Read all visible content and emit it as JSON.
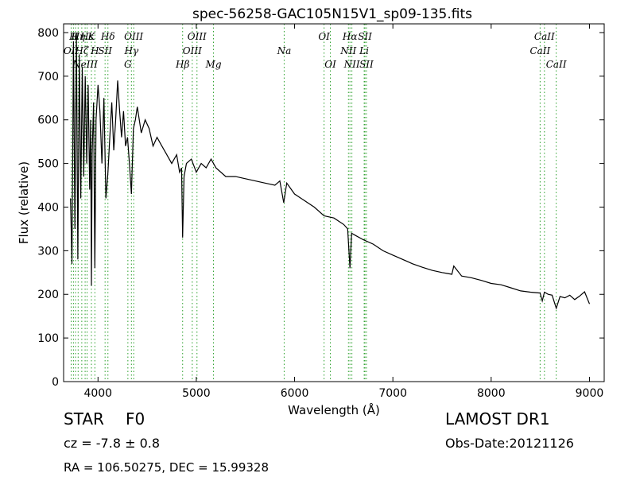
{
  "chart_data": {
    "type": "line",
    "title": "spec-56258-GAC105N15V1_sp09-135.fits",
    "xlabel": "Wavelength (Å)",
    "ylabel": "Flux (relative)",
    "xlim": [
      3650,
      9150
    ],
    "ylim": [
      0,
      820
    ],
    "xticks": [
      4000,
      5000,
      6000,
      7000,
      8000,
      9000
    ],
    "yticks": [
      0,
      100,
      200,
      300,
      400,
      500,
      600,
      700,
      800
    ],
    "grid": false,
    "line_color": "#000000",
    "marker_color": "#2ca02c",
    "series": [
      {
        "x": [
          3720,
          3735,
          3750,
          3765,
          3780,
          3795,
          3810,
          3825,
          3840,
          3855,
          3870,
          3885,
          3900,
          3915,
          3925,
          3933,
          3940,
          3955,
          3968,
          3980,
          4000,
          4020,
          4040,
          4060,
          4080,
          4101,
          4120,
          4140,
          4160,
          4180,
          4200,
          4220,
          4240,
          4260,
          4280,
          4300,
          4320,
          4340,
          4360,
          4380,
          4400,
          4440,
          4480,
          4520,
          4560,
          4600,
          4650,
          4700,
          4750,
          4800,
          4830,
          4850,
          4861,
          4875,
          4900,
          4950,
          5000,
          5050,
          5100,
          5150,
          5200,
          5300,
          5400,
          5500,
          5600,
          5700,
          5800,
          5850,
          5890,
          5920,
          6000,
          6100,
          6200,
          6300,
          6400,
          6500,
          6540,
          6563,
          6580,
          6620,
          6700,
          6800,
          6900,
          7000,
          7100,
          7200,
          7300,
          7400,
          7500,
          7550,
          7600,
          7620,
          7700,
          7800,
          7900,
          8000,
          8100,
          8200,
          8300,
          8400,
          8498,
          8520,
          8542,
          8580,
          8620,
          8662,
          8700,
          8750,
          8800,
          8850,
          8900,
          8950,
          9000
        ],
        "y": [
          420,
          270,
          780,
          350,
          800,
          280,
          750,
          420,
          720,
          470,
          700,
          500,
          680,
          440,
          600,
          220,
          520,
          640,
          260,
          600,
          680,
          620,
          500,
          650,
          420,
          480,
          560,
          640,
          530,
          600,
          690,
          620,
          560,
          620,
          540,
          560,
          500,
          430,
          580,
          600,
          630,
          570,
          600,
          580,
          540,
          560,
          540,
          520,
          500,
          520,
          480,
          490,
          330,
          470,
          500,
          510,
          480,
          500,
          490,
          510,
          490,
          470,
          470,
          465,
          460,
          455,
          450,
          460,
          410,
          455,
          430,
          415,
          400,
          380,
          375,
          360,
          350,
          260,
          340,
          335,
          325,
          315,
          300,
          290,
          280,
          270,
          262,
          255,
          250,
          248,
          246,
          265,
          242,
          238,
          232,
          225,
          222,
          215,
          208,
          205,
          203,
          185,
          205,
          200,
          198,
          168,
          195,
          192,
          198,
          188,
          196,
          206,
          178
        ]
      }
    ],
    "lines": [
      {
        "wl": 3727,
        "label": "OII",
        "row": 2
      },
      {
        "wl": 3750,
        "label": "H",
        "row": 1
      },
      {
        "wl": 3771,
        "label": "H",
        "row": 1
      },
      {
        "wl": 3798,
        "label": "Hη",
        "row": 1
      },
      {
        "wl": 3835,
        "label": "Hζ",
        "row": 2
      },
      {
        "wl": 3869,
        "label": "NeIII",
        "row": 3
      },
      {
        "wl": 3889,
        "label": "Hε",
        "row": 1
      },
      {
        "wl": 3933,
        "label": "K",
        "row": 1
      },
      {
        "wl": 3968,
        "label": "H",
        "row": 2
      },
      {
        "wl": 4072,
        "label": "SII",
        "row": 2
      },
      {
        "wl": 4101,
        "label": "Hδ",
        "row": 1
      },
      {
        "wl": 4304,
        "label": "G",
        "row": 3
      },
      {
        "wl": 4340,
        "label": "Hγ",
        "row": 2
      },
      {
        "wl": 4363,
        "label": "OIII",
        "row": 1
      },
      {
        "wl": 4861,
        "label": "Hβ",
        "row": 3
      },
      {
        "wl": 4959,
        "label": "OIII",
        "row": 2
      },
      {
        "wl": 5007,
        "label": "OIII",
        "row": 1
      },
      {
        "wl": 5175,
        "label": "Mg",
        "row": 3
      },
      {
        "wl": 5894,
        "label": "Na",
        "row": 2
      },
      {
        "wl": 6300,
        "label": "OI",
        "row": 1
      },
      {
        "wl": 6364,
        "label": "OI",
        "row": 3
      },
      {
        "wl": 6548,
        "label": "NII",
        "row": 2
      },
      {
        "wl": 6563,
        "label": "Hα",
        "row": 1
      },
      {
        "wl": 6583,
        "label": "NII",
        "row": 3
      },
      {
        "wl": 6708,
        "label": "Li",
        "row": 2
      },
      {
        "wl": 6716,
        "label": "SII",
        "row": 1
      },
      {
        "wl": 6731,
        "label": "SII",
        "row": 3
      },
      {
        "wl": 8498,
        "label": "CaII",
        "row": 2
      },
      {
        "wl": 8542,
        "label": "CaII",
        "row": 1
      },
      {
        "wl": 8662,
        "label": "CaII",
        "row": 3
      }
    ]
  },
  "info": {
    "class_label": "STAR",
    "subclass_label": "F0",
    "cz": "cz = -7.8 ± 0.8",
    "coords": "RA = 106.50275, DEC = 15.99328",
    "survey": "LAMOST DR1",
    "obs_date": "Obs-Date:20121126"
  }
}
